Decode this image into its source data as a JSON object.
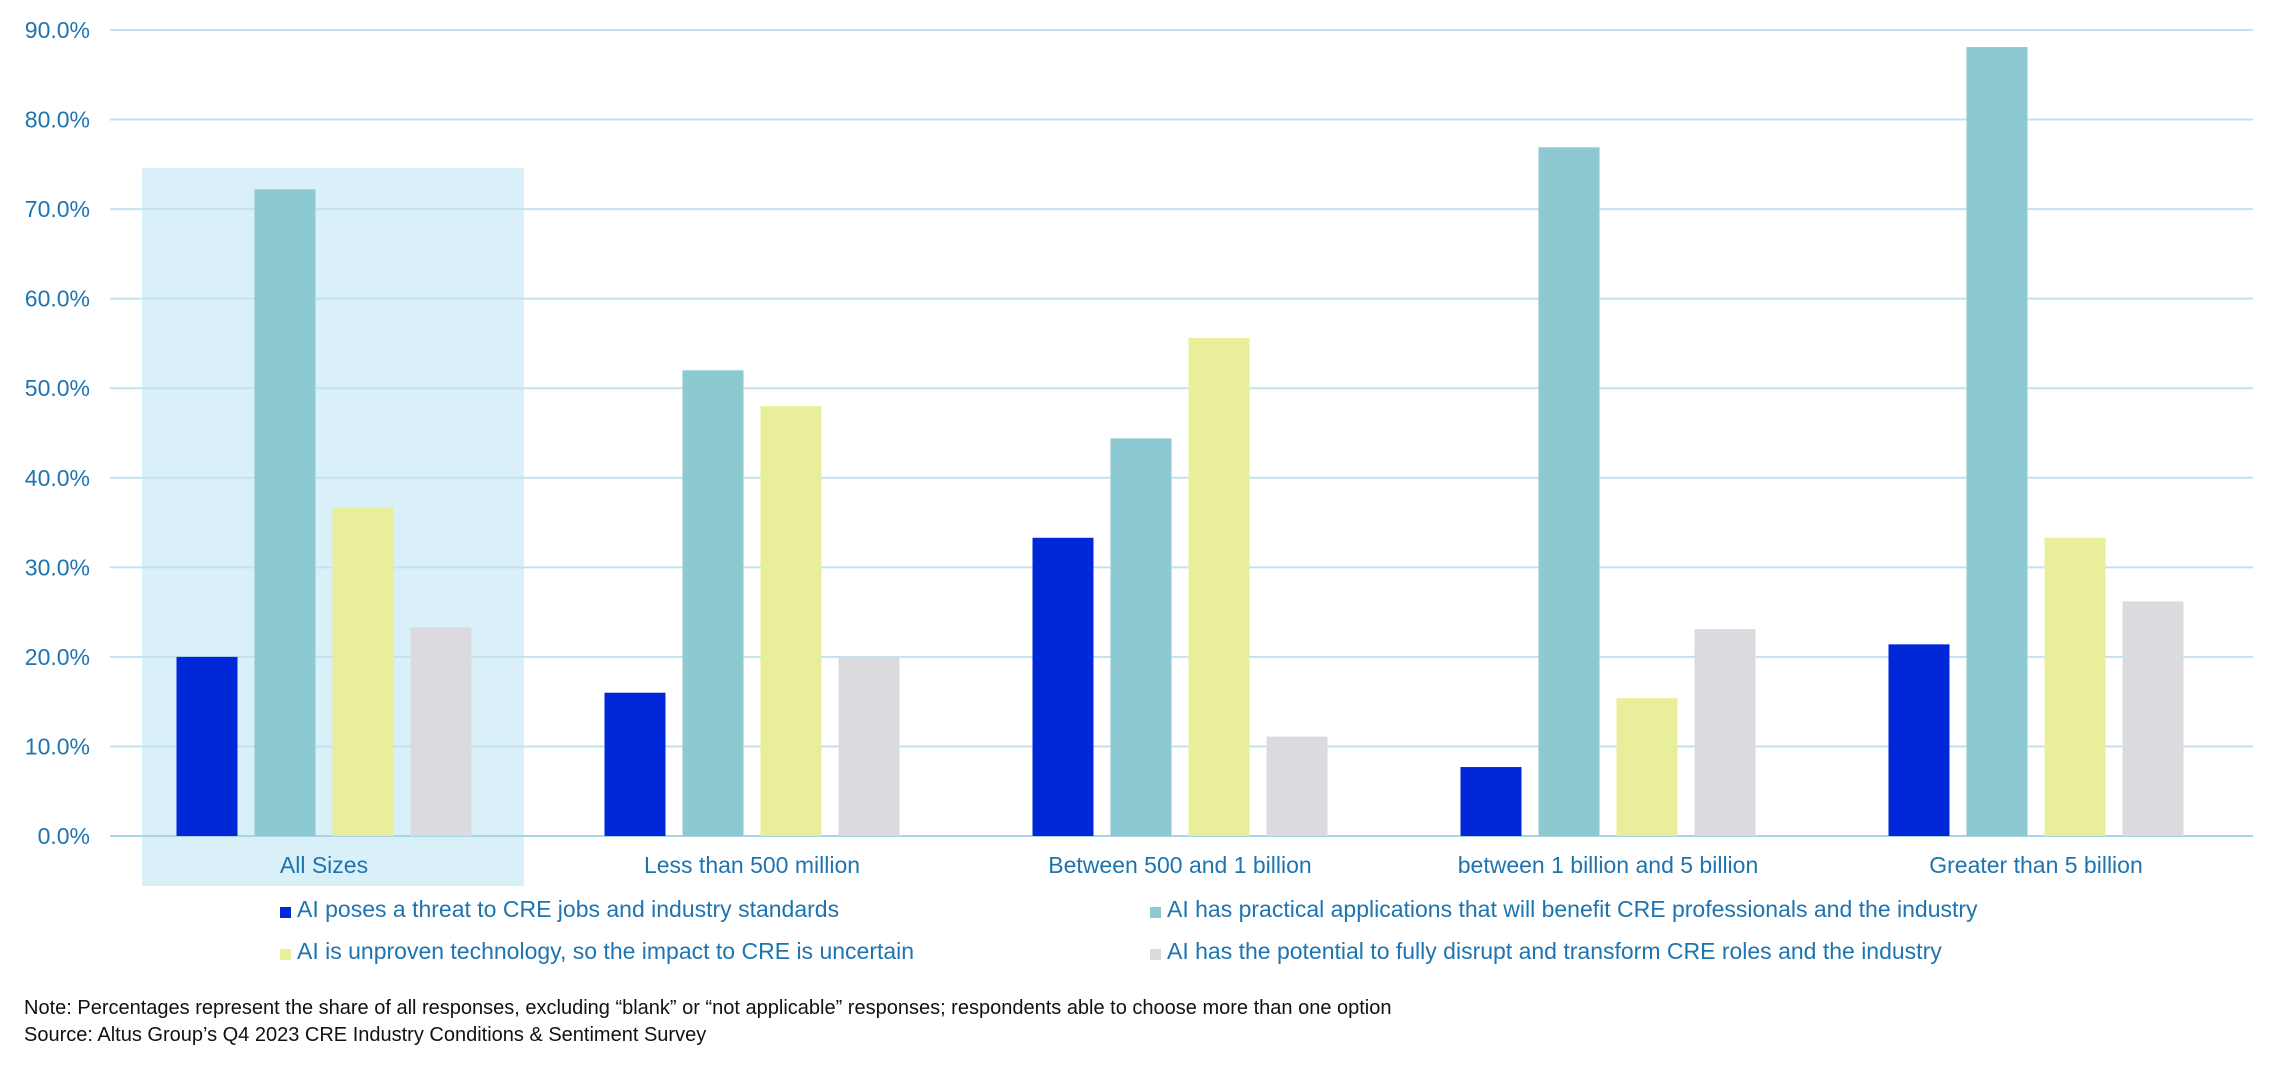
{
  "chart_data": {
    "type": "bar",
    "categories": [
      "All Sizes",
      "Less than 500 million",
      "Between 500 and 1 billion",
      "between 1 billion and 5 billion",
      "Greater than 5 billion"
    ],
    "series": [
      {
        "name": "AI poses a threat to CRE jobs and industry standards",
        "color": "#0028d8",
        "values": [
          20.0,
          16.0,
          33.3,
          7.7,
          21.4
        ]
      },
      {
        "name": "AI has practical applications that will benefit CRE professionals and the industry",
        "color": "#8cc9d1",
        "values": [
          72.2,
          52.0,
          44.4,
          76.9,
          88.1
        ]
      },
      {
        "name": "AI is unproven technology, so the impact to CRE is uncertain",
        "color": "#e8ee99",
        "values": [
          36.7,
          48.0,
          55.6,
          15.4,
          33.3
        ]
      },
      {
        "name": "AI has the potential to fully disrupt and transform CRE roles and the industry",
        "color": "#dadadf",
        "values": [
          23.3,
          20.0,
          11.1,
          23.1,
          26.2
        ]
      }
    ],
    "y_ticks": [
      "0.0%",
      "10.0%",
      "20.0%",
      "30.0%",
      "40.0%",
      "50.0%",
      "60.0%",
      "70.0%",
      "80.0%",
      "90.0%"
    ],
    "ylim": [
      0,
      90
    ],
    "highlighted_category": "All Sizes",
    "highlight_color": "#daf0f8",
    "grid": true,
    "legend_position": "bottom",
    "note": "Note: Percentages represent the share of all responses, excluding “blank” or “not applicable” responses; respondents able to choose more than one option",
    "source": "Source: Altus Group’s Q4 2023 CRE Industry Conditions & Sentiment Survey"
  }
}
